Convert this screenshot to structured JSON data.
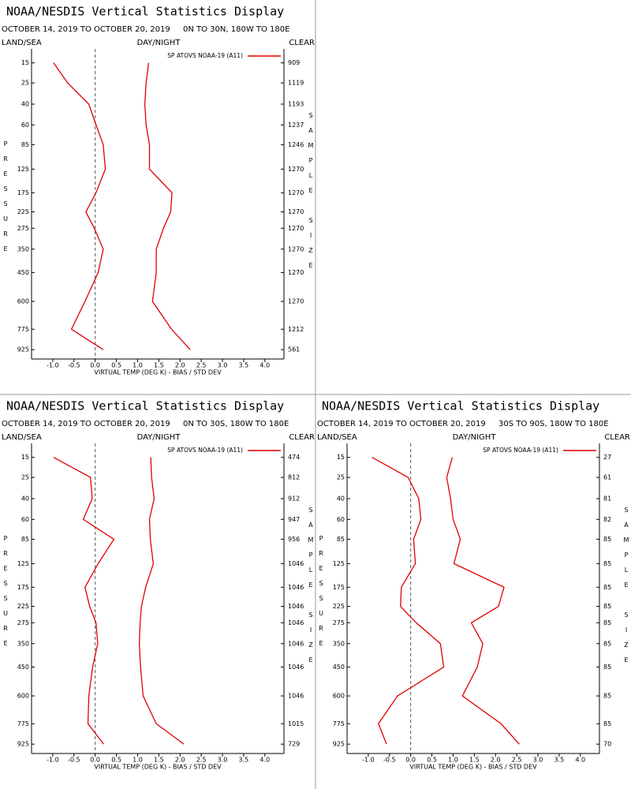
{
  "chart_data": [
    {
      "type": "line",
      "title": "NOAA/NESDIS Vertical Statistics Display",
      "date_range": "OCTOBER 14, 2019 TO OCTOBER 20, 2019",
      "region": "0N TO 30N, 180W TO 180E",
      "left_header": "LAND/SEA",
      "center_header": "DAY/NIGHT",
      "right_header": "CLEAR",
      "legend": "SP ATOVS NOAA-19 (A11)",
      "xlabel": "VIRTUAL TEMP (DEG K) - BIAS / STD DEV",
      "ylabel": "PRESSURE",
      "y2label": "SAMPLE SIZE",
      "y": [
        15,
        25,
        40,
        60,
        85,
        125,
        175,
        225,
        275,
        350,
        450,
        600,
        775,
        925
      ],
      "ylim": [
        10,
        1000
      ],
      "yscale": "power",
      "yexponent": 0.286,
      "yinvert": true,
      "xlim": [
        -1.5,
        4.45
      ],
      "xticks": [
        {
          "value": -1,
          "label": "-1.0"
        },
        {
          "value": -0.5,
          "label": "-0.5"
        },
        {
          "value": 0,
          "label": "0.0"
        },
        {
          "value": 0.5,
          "label": "0.5"
        },
        {
          "value": 1,
          "label": "1.0"
        },
        {
          "value": 1.5,
          "label": "1.5"
        },
        {
          "value": 2,
          "label": "2.0"
        },
        {
          "value": 2.5,
          "label": "2.5"
        },
        {
          "value": 3,
          "label": "3.0"
        },
        {
          "value": 3.5,
          "label": "3.5"
        },
        {
          "value": 4,
          "label": "4.0"
        }
      ],
      "zero_line": 0,
      "sample_sizes": [
        909,
        1119,
        1193,
        1237,
        1246,
        1270,
        1270,
        1270,
        1270,
        1270,
        1270,
        1270,
        1212,
        561
      ],
      "series": [
        {
          "color": "#e00000",
          "values": [
            -0.98,
            -0.65,
            -0.15,
            0.02,
            0.19,
            0.24,
            0.02,
            -0.22,
            -0.02,
            0.19,
            0.07,
            -0.24,
            -0.56,
            0.19
          ]
        },
        {
          "color": "#e00000",
          "values": [
            1.26,
            1.2,
            1.17,
            1.2,
            1.28,
            1.28,
            1.81,
            1.78,
            1.61,
            1.44,
            1.44,
            1.35,
            1.8,
            2.24
          ]
        }
      ]
    },
    {
      "type": "line",
      "title": "NOAA/NESDIS Vertical Statistics Display",
      "date_range": "OCTOBER 14, 2019 TO OCTOBER 20, 2019",
      "region": "0N TO 30S, 180W TO 180E",
      "left_header": "LAND/SEA",
      "center_header": "DAY/NIGHT",
      "right_header": "CLEAR",
      "legend": "SP ATOVS NOAA-19 (A11)",
      "xlabel": "VIRTUAL TEMP (DEG K) - BIAS / STD DEV",
      "ylabel": "PRESSURE",
      "y2label": "SAMPLE SIZE",
      "y": [
        15,
        25,
        40,
        60,
        85,
        125,
        175,
        225,
        275,
        350,
        450,
        600,
        775,
        925
      ],
      "ylim": [
        10,
        1000
      ],
      "yscale": "power",
      "yexponent": 0.286,
      "yinvert": true,
      "xlim": [
        -1.5,
        4.45
      ],
      "xticks": [
        {
          "value": -1,
          "label": "-1.0"
        },
        {
          "value": -0.5,
          "label": "-0.5"
        },
        {
          "value": 0,
          "label": "0.0"
        },
        {
          "value": 0.5,
          "label": "0.5"
        },
        {
          "value": 1,
          "label": "1.0"
        },
        {
          "value": 1.5,
          "label": "1.5"
        },
        {
          "value": 2,
          "label": "2.0"
        },
        {
          "value": 2.5,
          "label": "2.5"
        },
        {
          "value": 3,
          "label": "3.0"
        },
        {
          "value": 3.5,
          "label": "3.5"
        },
        {
          "value": 4,
          "label": "4.0"
        }
      ],
      "zero_line": 0,
      "sample_sizes": [
        474,
        812,
        912,
        947,
        956,
        1046,
        1046,
        1046,
        1046,
        1046,
        1046,
        1046,
        1015,
        729
      ],
      "series": [
        {
          "color": "#e00000",
          "values": [
            -0.98,
            -0.11,
            -0.07,
            -0.28,
            0.44,
            0.07,
            -0.24,
            -0.13,
            0.02,
            0.06,
            -0.06,
            -0.15,
            -0.17,
            0.2
          ]
        },
        {
          "color": "#e00000",
          "values": [
            1.31,
            1.33,
            1.39,
            1.28,
            1.3,
            1.37,
            1.19,
            1.09,
            1.06,
            1.04,
            1.07,
            1.13,
            1.44,
            2.09
          ]
        }
      ]
    },
    {
      "type": "line",
      "title": "NOAA/NESDIS Vertical Statistics Display",
      "date_range": "OCTOBER 14, 2019 TO OCTOBER 20, 2019",
      "region": "30S TO 90S, 180W TO 180E",
      "left_header": "LAND/SEA",
      "center_header": "DAY/NIGHT",
      "right_header": "CLEAR",
      "legend": "SP ATOVS NOAA-19 (A11)",
      "xlabel": "VIRTUAL TEMP (DEG K) - BIAS / STD DEV",
      "ylabel": "PRESSURE",
      "y2label": "SAMPLE SIZE",
      "y": [
        15,
        25,
        40,
        60,
        85,
        125,
        175,
        225,
        275,
        350,
        450,
        600,
        775,
        925
      ],
      "ylim": [
        10,
        1000
      ],
      "yscale": "power",
      "yexponent": 0.286,
      "yinvert": true,
      "xlim": [
        -1.5,
        4.45
      ],
      "xticks": [
        {
          "value": -1,
          "label": "-1.0"
        },
        {
          "value": -0.5,
          "label": "-0.5"
        },
        {
          "value": 0,
          "label": "0.0"
        },
        {
          "value": 0.5,
          "label": "0.5"
        },
        {
          "value": 1,
          "label": "1.0"
        },
        {
          "value": 1.5,
          "label": "1.5"
        },
        {
          "value": 2,
          "label": "2.0"
        },
        {
          "value": 2.5,
          "label": "2.5"
        },
        {
          "value": 3,
          "label": "3.0"
        },
        {
          "value": 3.5,
          "label": "3.5"
        },
        {
          "value": 4,
          "label": "4.0"
        }
      ],
      "zero_line": 0,
      "sample_sizes": [
        27,
        61,
        81,
        82,
        85,
        85,
        85,
        85,
        85,
        85,
        85,
        85,
        85,
        70
      ],
      "series": [
        {
          "color": "#e00000",
          "values": [
            -0.91,
            -0.06,
            0.19,
            0.24,
            0.07,
            0.11,
            -0.22,
            -0.24,
            0.13,
            0.7,
            0.78,
            -0.31,
            -0.76,
            -0.57
          ]
        },
        {
          "color": "#e00000",
          "values": [
            0.98,
            0.85,
            0.94,
            1.0,
            1.17,
            1.02,
            2.2,
            2.07,
            1.43,
            1.7,
            1.57,
            1.22,
            2.13,
            2.56
          ]
        }
      ]
    }
  ]
}
